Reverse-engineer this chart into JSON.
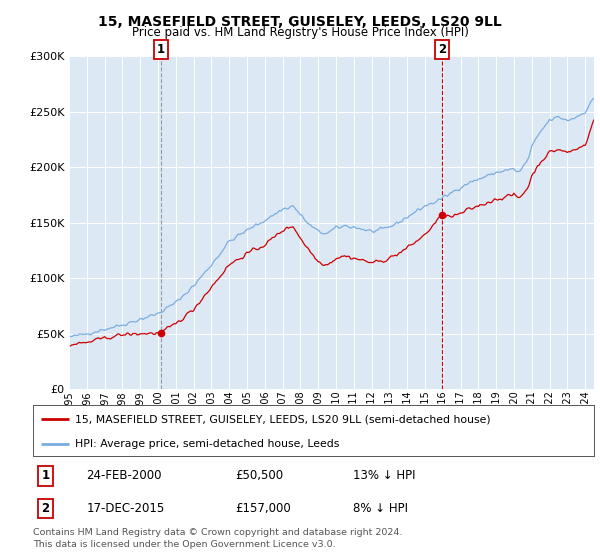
{
  "title": "15, MASEFIELD STREET, GUISELEY, LEEDS, LS20 9LL",
  "subtitle": "Price paid vs. HM Land Registry's House Price Index (HPI)",
  "legend_line1": "15, MASEFIELD STREET, GUISELEY, LEEDS, LS20 9LL (semi-detached house)",
  "legend_line2": "HPI: Average price, semi-detached house, Leeds",
  "annotation1_date": "24-FEB-2000",
  "annotation1_price": "£50,500",
  "annotation1_hpi": "13% ↓ HPI",
  "annotation1_year": 2000.15,
  "annotation1_value": 50500,
  "annotation2_date": "17-DEC-2015",
  "annotation2_price": "£157,000",
  "annotation2_hpi": "8% ↓ HPI",
  "annotation2_year": 2015.97,
  "annotation2_value": 157000,
  "footer1": "Contains HM Land Registry data © Crown copyright and database right 2024.",
  "footer2": "This data is licensed under the Open Government Licence v3.0.",
  "price_color": "#cc0000",
  "hpi_color": "#7aade0",
  "plot_bg_color": "#dce9f5",
  "grid_color": "#ffffff",
  "ylim": [
    0,
    300000
  ],
  "yticks": [
    0,
    50000,
    100000,
    150000,
    200000,
    250000,
    300000
  ],
  "xlim_start": 1995.3,
  "xlim_end": 2024.5
}
